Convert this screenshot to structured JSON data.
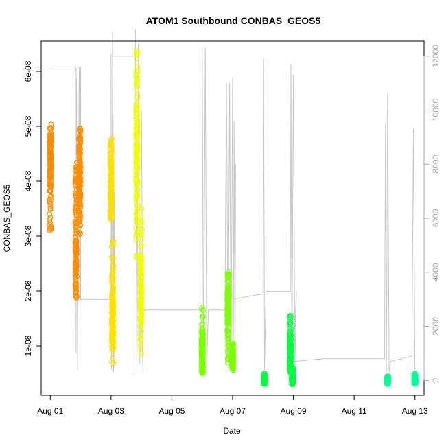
{
  "chart_data": {
    "type": "scatter",
    "title": "ATOM1 Southbound CONBAS_GEOS5",
    "xlabel": "Date",
    "ylabel": "CONBAS_GEOS5",
    "x_ticks": [
      {
        "day": 1,
        "label": "Aug 01"
      },
      {
        "day": 3,
        "label": "Aug 03"
      },
      {
        "day": 5,
        "label": "Aug 05"
      },
      {
        "day": 7,
        "label": "Aug 07"
      },
      {
        "day": 9,
        "label": "Aug 09"
      },
      {
        "day": 11,
        "label": "Aug 11"
      },
      {
        "day": 13,
        "label": "Aug 13"
      }
    ],
    "xlim": [
      0.7,
      13.3
    ],
    "y_ticks": [
      {
        "value": 1e-08,
        "label": "1e-08"
      },
      {
        "value": 2e-08,
        "label": "2e-08"
      },
      {
        "value": 3e-08,
        "label": "3e-08"
      },
      {
        "value": 4e-08,
        "label": "4e-08"
      },
      {
        "value": 5e-08,
        "label": "5e-08"
      },
      {
        "value": 6e-08,
        "label": "6e-08"
      }
    ],
    "ylim": [
      1e-09,
      6.55e-08
    ],
    "y2_ticks": [
      {
        "value": 0,
        "label": "0"
      },
      {
        "value": 2000,
        "label": "2000"
      },
      {
        "value": 4000,
        "label": "4000"
      },
      {
        "value": 6000,
        "label": "6000"
      },
      {
        "value": 8000,
        "label": "8000"
      },
      {
        "value": 10000,
        "label": "10000"
      },
      {
        "value": 12000,
        "label": "12000"
      }
    ],
    "y2lim": [
      -550,
      12550
    ],
    "altitude_color": "#c8c8c8",
    "altitude_trace": [
      [
        1.0,
        11600
      ],
      [
        1.3,
        11600
      ],
      [
        1.5,
        11600
      ],
      [
        1.7,
        11600
      ],
      [
        1.85,
        11600
      ],
      [
        1.85,
        1000
      ],
      [
        1.86,
        11200
      ],
      [
        1.9,
        400
      ],
      [
        1.95,
        11600
      ],
      [
        1.98,
        2800
      ],
      [
        2.0,
        11600
      ],
      [
        2.0,
        3000
      ],
      [
        3.0,
        3000
      ],
      [
        3.0,
        12100
      ],
      [
        3.02,
        400
      ],
      [
        3.05,
        12900
      ],
      [
        3.08,
        300
      ],
      [
        3.1,
        7000
      ],
      [
        3.12,
        400
      ],
      [
        3.05,
        12000
      ],
      [
        3.8,
        12000
      ],
      [
        3.8,
        13000
      ],
      [
        3.85,
        200
      ],
      [
        3.9,
        12500
      ],
      [
        3.95,
        600
      ],
      [
        4.0,
        10000
      ],
      [
        4.05,
        300
      ],
      [
        4.0,
        2600
      ],
      [
        4.8,
        2600
      ],
      [
        5.0,
        2600
      ],
      [
        5.5,
        2600
      ],
      [
        6.0,
        2600
      ],
      [
        6.0,
        12300
      ],
      [
        6.05,
        500
      ],
      [
        6.1,
        12300
      ],
      [
        6.15,
        600
      ],
      [
        6.2,
        2600
      ],
      [
        6.75,
        2600
      ],
      [
        6.8,
        11000
      ],
      [
        6.85,
        300
      ],
      [
        6.9,
        11000
      ],
      [
        6.95,
        400
      ],
      [
        7.0,
        11200
      ],
      [
        7.02,
        300
      ],
      [
        7.05,
        9600
      ],
      [
        7.08,
        400
      ],
      [
        7.1,
        8000
      ],
      [
        7.0,
        3000
      ],
      [
        8.0,
        3200
      ],
      [
        8.02,
        11900
      ],
      [
        8.05,
        400
      ],
      [
        8.1,
        3300
      ],
      [
        8.9,
        3300
      ],
      [
        8.92,
        11700
      ],
      [
        8.95,
        400
      ],
      [
        9.0,
        11300
      ],
      [
        9.05,
        500
      ],
      [
        9.1,
        3300
      ],
      [
        9.0,
        700
      ],
      [
        10.0,
        800
      ],
      [
        12.0,
        800
      ],
      [
        12.03,
        9500
      ],
      [
        12.06,
        300
      ],
      [
        12.1,
        10600
      ],
      [
        12.15,
        300
      ],
      [
        12.2,
        700
      ],
      [
        12.9,
        900
      ],
      [
        12.95,
        9300
      ],
      [
        13.0,
        400
      ]
    ],
    "series": [
      {
        "color": "#ff8c00",
        "flights": [
          {
            "day": 1.0,
            "lo": 3.1e-08,
            "hi": 5.05e-08,
            "peak": 4.3e-08
          },
          {
            "day": 1.85,
            "lo": 1.88e-08,
            "hi": 4.4e-08,
            "peak": 2.6e-08
          },
          {
            "day": 1.97,
            "lo": 3e-08,
            "hi": 5e-08,
            "peak": 4e-08
          }
        ]
      },
      {
        "color": "#ffe000",
        "flights": [
          {
            "day": 3.0,
            "lo": 3.3e-08,
            "hi": 4.8e-08,
            "peak": 3.9e-08
          },
          {
            "day": 3.05,
            "lo": 6.5e-09,
            "hi": 3e-08,
            "peak": 1.5e-08
          }
        ]
      },
      {
        "color": "#f0ff00",
        "flights": [
          {
            "day": 3.85,
            "lo": 2.5e-08,
            "hi": 6.42e-08,
            "peak": 4.6e-08
          },
          {
            "day": 3.98,
            "lo": 8.5e-09,
            "hi": 3.5e-08,
            "peak": 2e-08
          }
        ]
      },
      {
        "color": "#7dff00",
        "flights": [
          {
            "day": 6.0,
            "lo": 5e-09,
            "hi": 1.7e-08,
            "peak": 8e-09
          },
          {
            "day": 6.85,
            "lo": 6.5e-09,
            "hi": 2.45e-08,
            "peak": 1.7e-08
          },
          {
            "day": 7.0,
            "lo": 5.5e-09,
            "hi": 1.05e-08,
            "peak": 7.5e-09
          }
        ]
      },
      {
        "color": "#00ff40",
        "flights": [
          {
            "day": 8.05,
            "lo": 3e-09,
            "hi": 5e-09,
            "peak": 3.8e-09
          },
          {
            "day": 8.9,
            "lo": 5e-09,
            "hi": 1.55e-08,
            "peak": 9e-09
          },
          {
            "day": 8.97,
            "lo": 3e-09,
            "hi": 6e-09,
            "peak": 4e-09
          }
        ]
      },
      {
        "color": "#00ff99",
        "flights": [
          {
            "day": 12.1,
            "lo": 3e-09,
            "hi": 4.5e-09,
            "peak": 3.6e-09
          },
          {
            "day": 13.0,
            "lo": 3e-09,
            "hi": 5e-09,
            "peak": 3.8e-09
          }
        ]
      }
    ]
  }
}
